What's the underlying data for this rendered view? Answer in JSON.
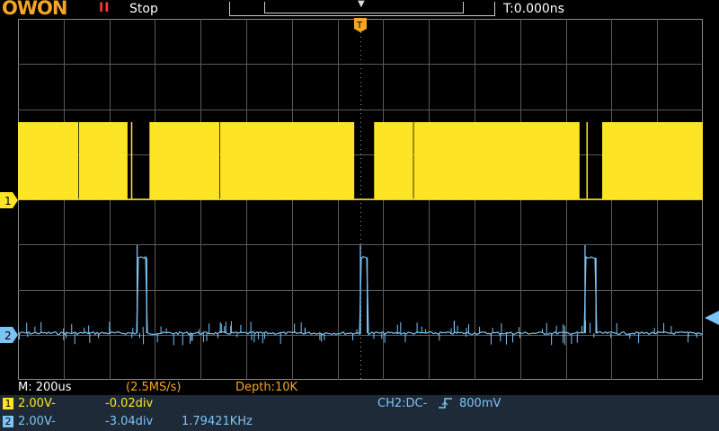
{
  "brand": {
    "logo": "OWON"
  },
  "header": {
    "run_icon": "II",
    "run_status": "Stop",
    "trigger_time": "T:0.000ns"
  },
  "footer": {
    "timebase": "M: 200us",
    "sample_rate": "(2.5MS/s)",
    "depth": "Depth:10K",
    "ch1": {
      "badge": "1",
      "volts": "2.00V-",
      "offset": "-0.02div"
    },
    "ch2": {
      "badge": "2",
      "volts": "2.00V-",
      "offset": "-3.04div",
      "freq": "1.79421KHz"
    },
    "trigger": {
      "text": "CH2:DC-",
      "level": "800mV"
    }
  },
  "markers": {
    "ch1": "1",
    "ch2": "2",
    "trigger": "T"
  },
  "colors": {
    "ch1": "#fde424",
    "ch2": "#7cc4f5",
    "grid": "#5a5a5a",
    "background": "#000000"
  },
  "waveform": {
    "ch1_bursts": [
      [
        0.0,
        0.088
      ],
      [
        0.089,
        0.16
      ],
      [
        0.165,
        0.167
      ],
      [
        0.192,
        0.294
      ],
      [
        0.295,
        0.491
      ],
      [
        0.52,
        0.577
      ],
      [
        0.578,
        0.82
      ],
      [
        0.83,
        0.832
      ],
      [
        0.853,
        1.0
      ]
    ],
    "ch2_pulses": [
      [
        0.174,
        0.188
      ],
      [
        0.5,
        0.51
      ],
      [
        0.828,
        0.844
      ]
    ]
  }
}
